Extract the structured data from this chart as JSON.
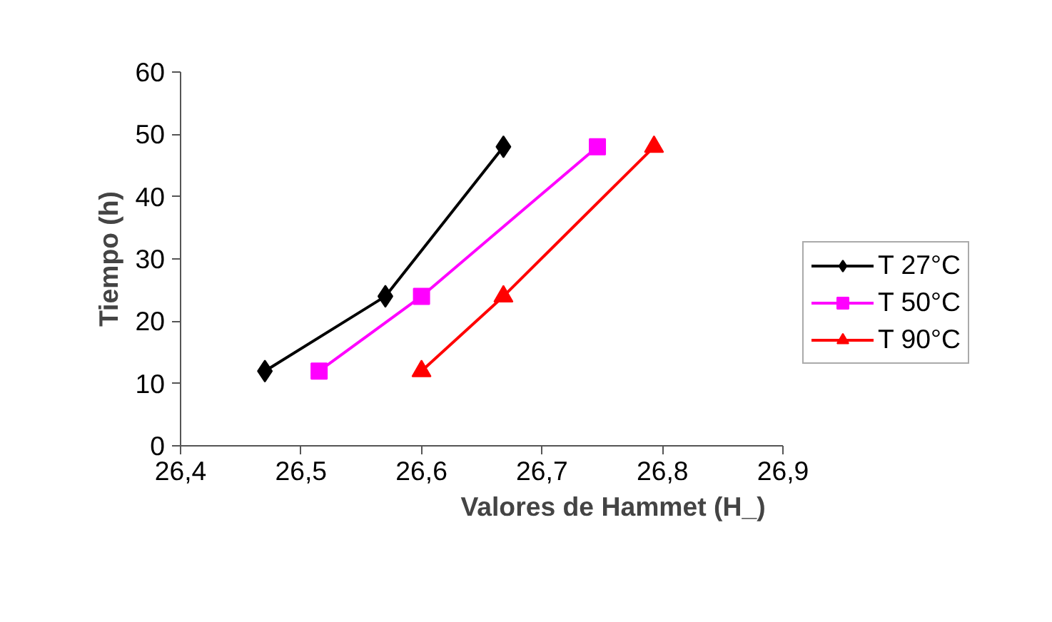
{
  "chart_data": {
    "type": "line",
    "xlabel": "Valores de Hammet (H_)",
    "ylabel": "Tiempo (h)",
    "xlim": [
      26.4,
      26.9
    ],
    "xticks": [
      {
        "value": 26.4,
        "label": "26,4"
      },
      {
        "value": 26.5,
        "label": "26,5"
      },
      {
        "value": 26.6,
        "label": "26,6"
      },
      {
        "value": 26.7,
        "label": "26,7"
      },
      {
        "value": 26.8,
        "label": "26,8"
      },
      {
        "value": 26.9,
        "label": "26,9"
      }
    ],
    "ylim": [
      0,
      60
    ],
    "yticks": [
      0,
      10,
      20,
      30,
      40,
      50,
      60
    ],
    "grid": false,
    "legend": "right",
    "series": [
      {
        "name": "T 27°C",
        "color": "#000000",
        "marker": "diamond",
        "x": [
          26.47,
          26.57,
          26.668
        ],
        "values": [
          12,
          24,
          48
        ]
      },
      {
        "name": "T 50°C",
        "color": "#ff00ff",
        "marker": "square",
        "x": [
          26.515,
          26.6,
          26.746
        ],
        "values": [
          12,
          24,
          48
        ]
      },
      {
        "name": "T 90°C",
        "color": "#ff0000",
        "marker": "triangle",
        "x": [
          26.6,
          26.668,
          26.793
        ],
        "values": [
          12,
          24,
          48
        ]
      }
    ]
  }
}
